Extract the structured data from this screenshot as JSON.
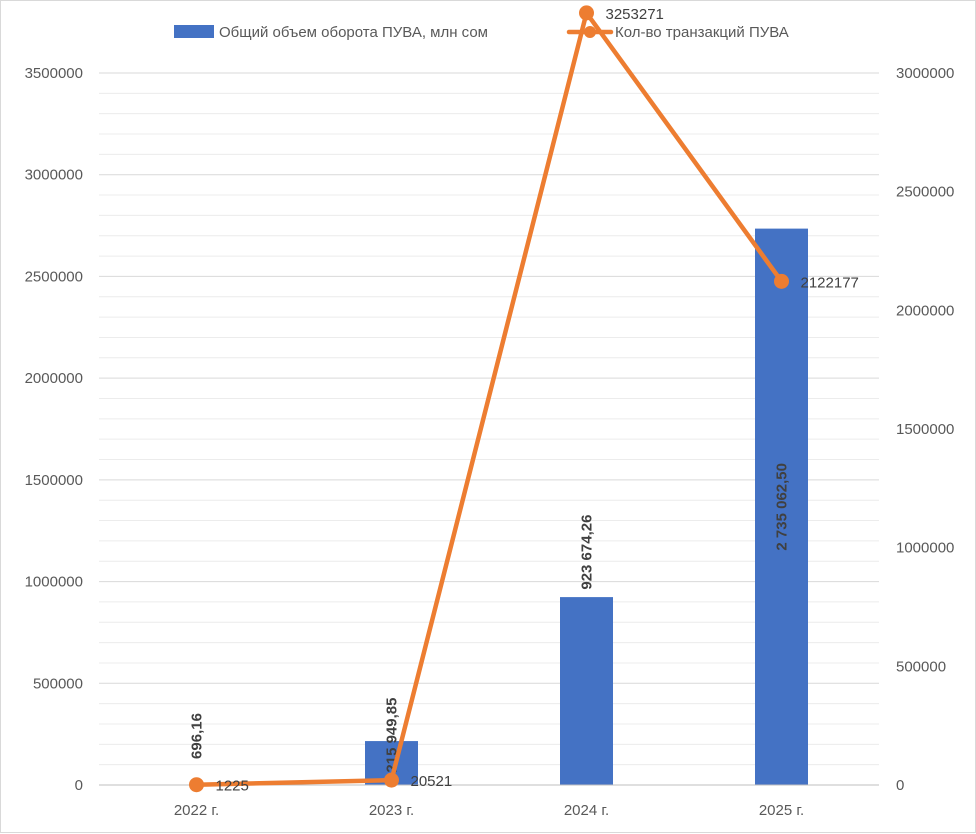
{
  "chart_data": {
    "type": "bar",
    "title": "",
    "categories": [
      "2022 г.",
      "2023 г.",
      "2024 г.",
      "2025 г."
    ],
    "series": [
      {
        "name": "Общий объем оборота ПУВА, млн сом",
        "type": "bar",
        "axis": "left",
        "color": "#4472C4",
        "values": [
          696.16,
          215949.85,
          923674.26,
          2735062.5
        ],
        "labels": [
          "696,16",
          "215 949,85",
          "923 674,26",
          "2 735 062,50"
        ]
      },
      {
        "name": "Кол-во транзакций ПУВА",
        "type": "line",
        "axis": "right",
        "color": "#ED7D31",
        "values": [
          1225,
          20521,
          3253271,
          2122177
        ],
        "labels": [
          "1225",
          "20521",
          "3253271",
          "2122177"
        ]
      }
    ],
    "y_left": {
      "min": 0,
      "max": 3500000,
      "ticks": [
        "0",
        "500000",
        "1000000",
        "1500000",
        "2000000",
        "2500000",
        "3000000",
        "3500000"
      ]
    },
    "y_right": {
      "min": 0,
      "max": 3000000,
      "ticks": [
        "0",
        "500000",
        "1000000",
        "1500000",
        "2000000",
        "2500000",
        "3000000"
      ]
    },
    "grid": true,
    "legend_position": "top"
  }
}
